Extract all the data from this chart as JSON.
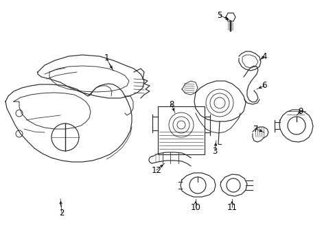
{
  "bg_color": "#ffffff",
  "line_color": "#2b2b2b",
  "figsize": [
    4.89,
    3.6
  ],
  "dpi": 100,
  "label_fontsize": 8.5,
  "lw": 0.85
}
